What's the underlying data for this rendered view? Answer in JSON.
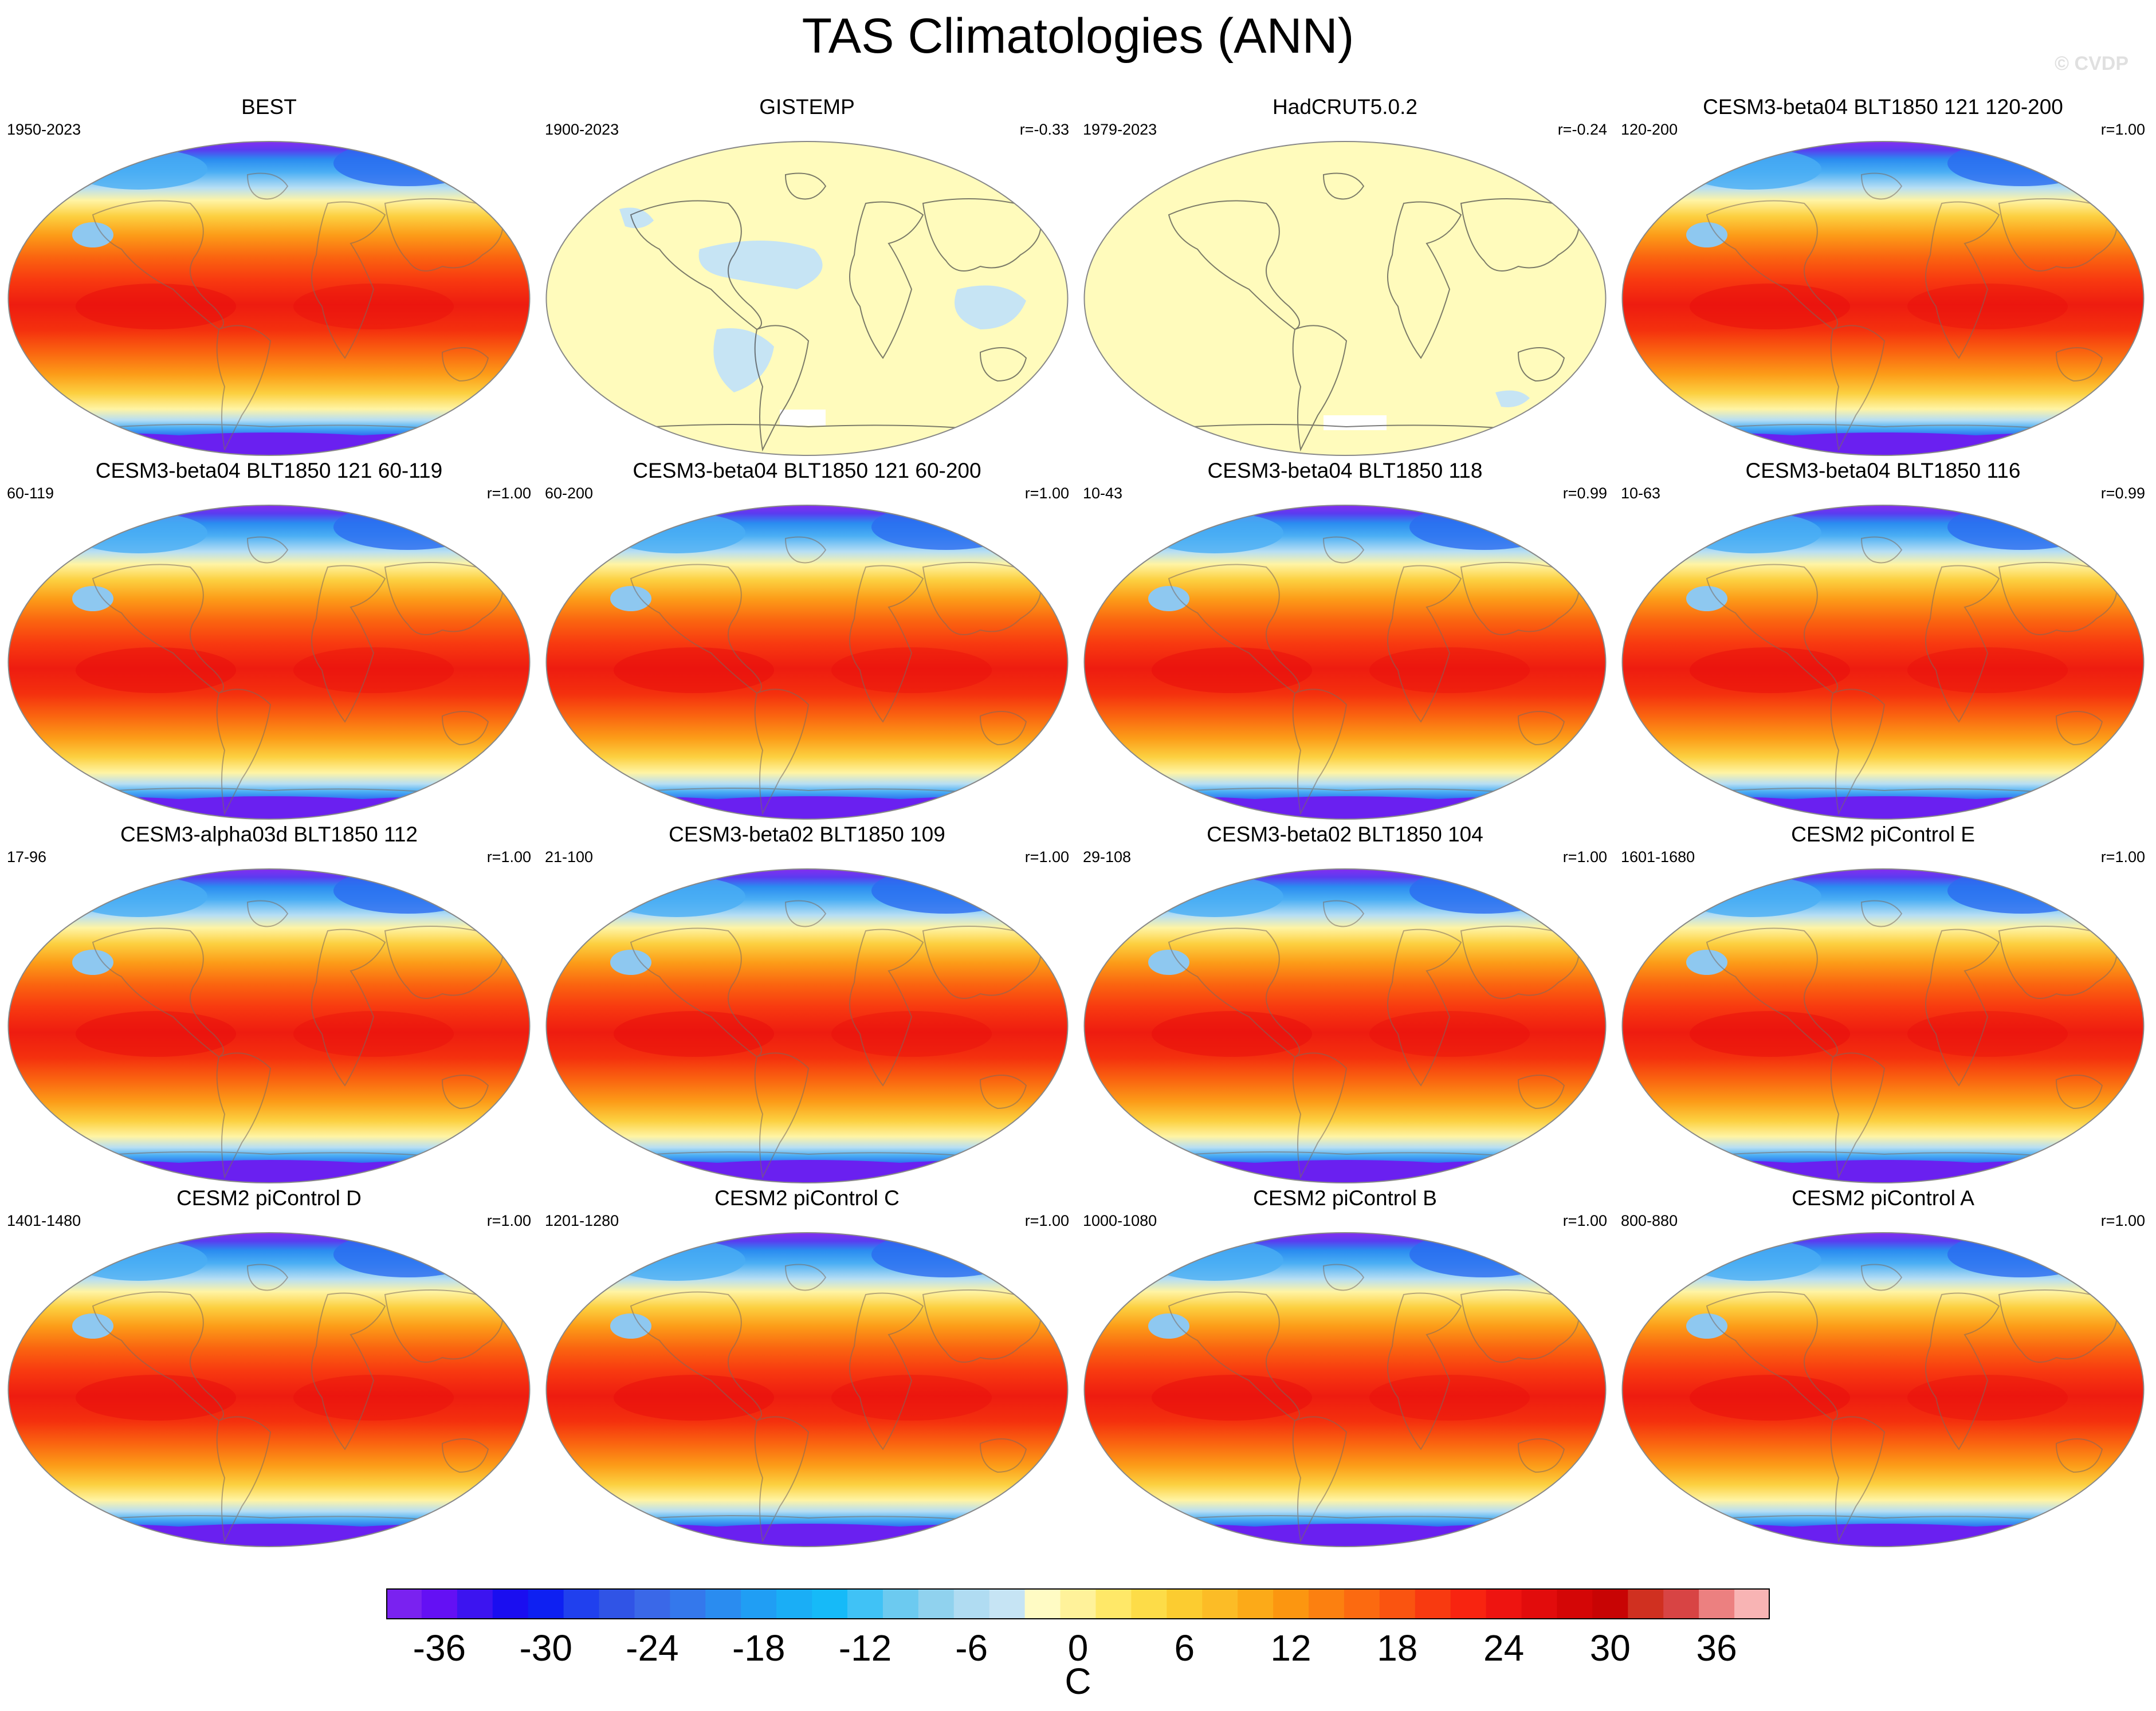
{
  "title": "TAS Climatologies (ANN)",
  "watermark": "© CVDP",
  "panels": [
    {
      "title": "BEST",
      "left": "1950-2023",
      "right": "",
      "style": "full"
    },
    {
      "title": "GISTEMP",
      "left": "1900-2023",
      "right": "r=-0.33",
      "style": "gistemp"
    },
    {
      "title": "HadCRUT5.0.2",
      "left": "1979-2023",
      "right": "r=-0.24",
      "style": "hadcrut"
    },
    {
      "title": "CESM3-beta04 BLT1850 121 120-200",
      "left": "120-200",
      "right": "r=1.00",
      "style": "full"
    },
    {
      "title": "CESM3-beta04 BLT1850 121 60-119",
      "left": "60-119",
      "right": "r=1.00",
      "style": "full"
    },
    {
      "title": "CESM3-beta04 BLT1850 121 60-200",
      "left": "60-200",
      "right": "r=1.00",
      "style": "full"
    },
    {
      "title": "CESM3-beta04 BLT1850 118",
      "left": "10-43",
      "right": "r=0.99",
      "style": "full"
    },
    {
      "title": "CESM3-beta04 BLT1850 116",
      "left": "10-63",
      "right": "r=0.99",
      "style": "full"
    },
    {
      "title": "CESM3-alpha03d BLT1850 112",
      "left": "17-96",
      "right": "r=1.00",
      "style": "full"
    },
    {
      "title": "CESM3-beta02 BLT1850 109",
      "left": "21-100",
      "right": "r=1.00",
      "style": "full"
    },
    {
      "title": "CESM3-beta02 BLT1850 104",
      "left": "29-108",
      "right": "r=1.00",
      "style": "full"
    },
    {
      "title": "CESM2 piControl E",
      "left": "1601-1680",
      "right": "r=1.00",
      "style": "full"
    },
    {
      "title": "CESM2 piControl D",
      "left": "1401-1480",
      "right": "r=1.00",
      "style": "full"
    },
    {
      "title": "CESM2 piControl C",
      "left": "1201-1280",
      "right": "r=1.00",
      "style": "full"
    },
    {
      "title": "CESM2 piControl B",
      "left": "1000-1080",
      "right": "r=1.00",
      "style": "full"
    },
    {
      "title": "CESM2 piControl A",
      "left": "800-880",
      "right": "r=1.00",
      "style": "full"
    }
  ],
  "colorbar": {
    "unit": "C",
    "ticks": [
      "-36",
      "-30",
      "-24",
      "-18",
      "-12",
      "-6",
      "0",
      "6",
      "12",
      "18",
      "24",
      "30",
      "36"
    ],
    "tick_values": [
      -36,
      -30,
      -24,
      -18,
      -12,
      -6,
      0,
      6,
      12,
      18,
      24,
      30,
      36
    ],
    "range": [
      -42,
      42
    ],
    "step": 2,
    "colors": [
      "#7a22f0",
      "#6410f4",
      "#3c14f0",
      "#1a0ef0",
      "#0e20f2",
      "#2040ee",
      "#3054e6",
      "#3a68e8",
      "#3478ec",
      "#2a8cf0",
      "#209ef4",
      "#1aaef6",
      "#16baf8",
      "#40c2f6",
      "#6ccaf0",
      "#90d2ee",
      "#b0dcf2",
      "#c6e4f4",
      "#fffbc4",
      "#fff29a",
      "#ffe868",
      "#fddc48",
      "#fccc30",
      "#fcbc26",
      "#fcaa18",
      "#fc9610",
      "#fc8010",
      "#fc6a10",
      "#fa5410",
      "#f83a10",
      "#f82410",
      "#ee1410",
      "#e20c0c",
      "#d40606",
      "#c80404",
      "#d03020",
      "#d84444",
      "#ec8080",
      "#f8b4b4"
    ]
  }
}
